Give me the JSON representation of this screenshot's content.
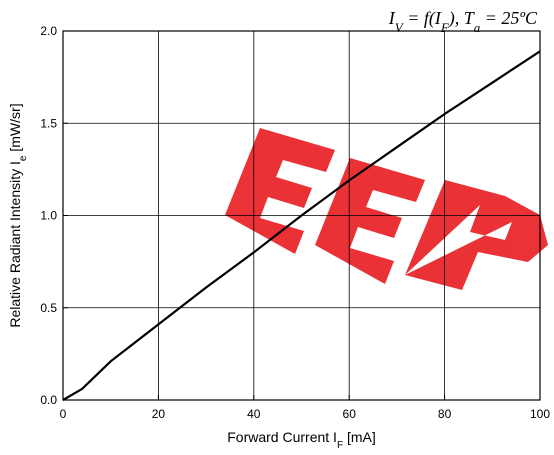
{
  "chart_data": {
    "type": "line",
    "annotation": "I_V = f(I_F), T_a = 25ºC",
    "xlabel": "Forward Current I_F [mA]",
    "ylabel": "Relative Radiant Intensity I_e [mW/sr]",
    "xlim": [
      0,
      100
    ],
    "ylim": [
      0,
      2.0
    ],
    "x_ticks": [
      "0",
      "20",
      "40",
      "60",
      "80",
      "100"
    ],
    "y_ticks": [
      "0.0",
      "0.5",
      "1.0",
      "1.5",
      "2.0"
    ],
    "grid": true,
    "series": [
      {
        "x": [
          0,
          4,
          10,
          20,
          30,
          40,
          50,
          60,
          70,
          80,
          90,
          100
        ],
        "y": [
          0,
          0.06,
          0.21,
          0.41,
          0.61,
          0.8,
          1.0,
          1.19,
          1.37,
          1.55,
          1.72,
          1.89
        ]
      }
    ],
    "watermark": "EEP",
    "colors": {
      "line": "#000000",
      "grid": "#000000",
      "watermark": "#e8161b"
    }
  }
}
